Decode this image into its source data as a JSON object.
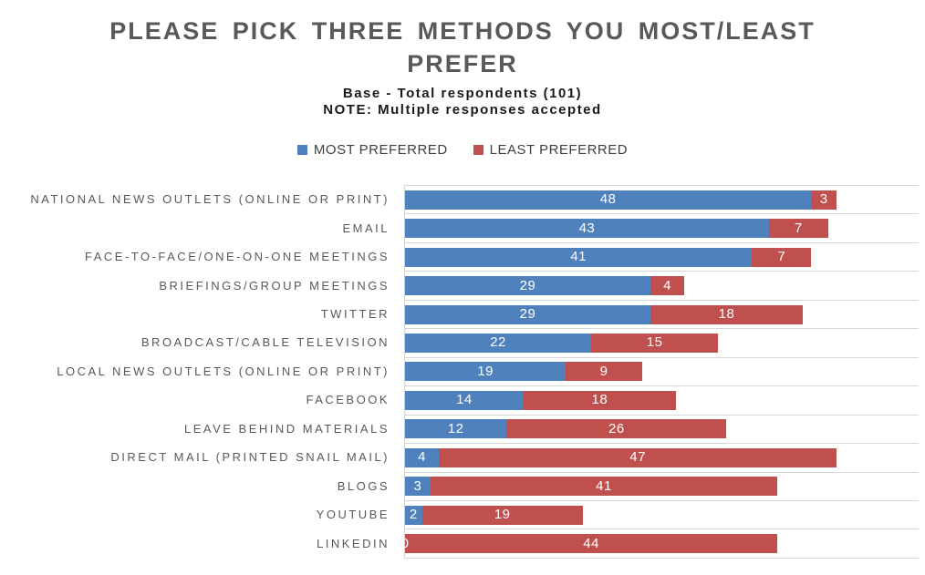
{
  "chart_data": {
    "type": "bar",
    "orientation": "horizontal",
    "stacked": true,
    "title": "PLEASE PICK THREE METHODS YOU MOST/LEAST PREFER",
    "subtitle_lines": [
      "Base - Total respondents (101)",
      "NOTE: Multiple responses accepted"
    ],
    "legend_position": "top",
    "categories": [
      "NATIONAL NEWS OUTLETS (ONLINE OR PRINT)",
      "EMAIL",
      "FACE-TO-FACE/ONE-ON-ONE MEETINGS",
      "BRIEFINGS/GROUP MEETINGS",
      "TWITTER",
      "BROADCAST/CABLE TELEVISION",
      "LOCAL NEWS OUTLETS (ONLINE OR PRINT)",
      "FACEBOOK",
      "LEAVE BEHIND MATERIALS",
      "DIRECT MAIL (PRINTED SNAIL MAIL)",
      "BLOGS",
      "YOUTUBE",
      "LINKEDIN"
    ],
    "series": [
      {
        "name": "MOST PREFERRED",
        "color": "#4F81BD",
        "values": [
          48,
          43,
          41,
          29,
          29,
          22,
          19,
          14,
          12,
          4,
          3,
          2,
          0
        ]
      },
      {
        "name": "LEAST PREFERRED",
        "color": "#C0504D",
        "values": [
          3,
          7,
          7,
          4,
          18,
          15,
          9,
          18,
          26,
          47,
          41,
          19,
          44
        ]
      }
    ],
    "xlim": [
      0,
      60.8
    ],
    "grid": "horizontal category separators only",
    "data_labels": "inside segments, white"
  },
  "colors": {
    "background": "#FFFFFF",
    "title_text": "#595959",
    "subtitle_text": "#1A1A1A",
    "category_text": "#595959",
    "legend_text": "#3F3F3F",
    "gridline": "#D9D9D9",
    "most_preferred": "#4F81BD",
    "least_preferred": "#C0504D"
  }
}
